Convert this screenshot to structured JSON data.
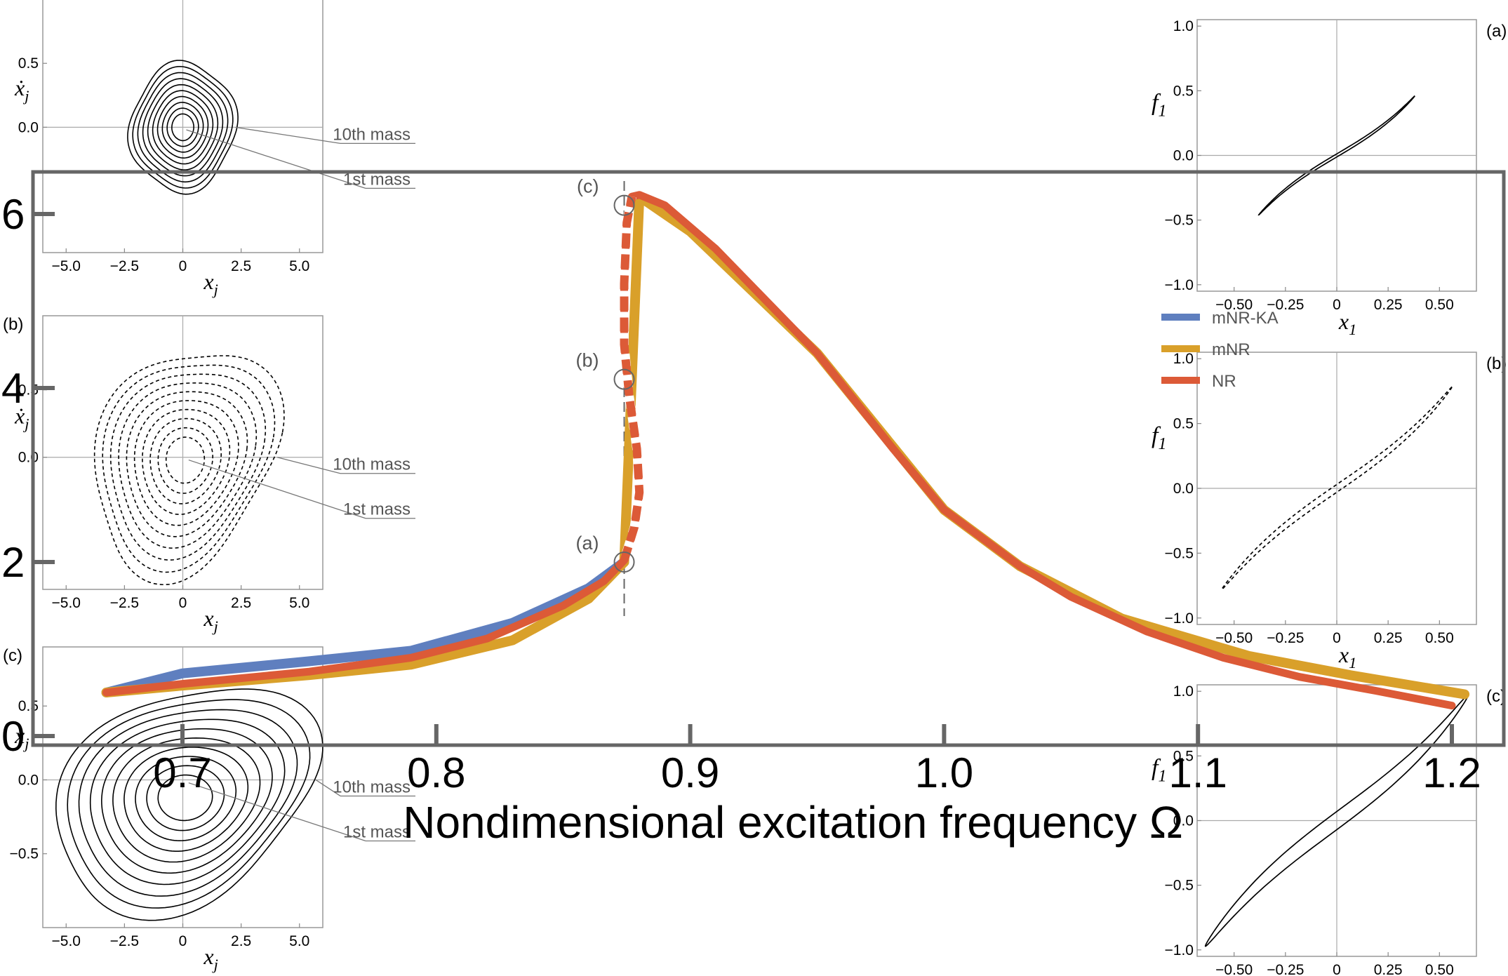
{
  "chart_data": [
    {
      "id": "main",
      "type": "line",
      "title": "",
      "xlabel": "Nondimensional excitation frequency Ω",
      "ylabel": "",
      "xlim": [
        0.66,
        1.22
      ],
      "ylim": [
        -0.15,
        6.45
      ],
      "xticks": [
        "0.7",
        "0.8",
        "0.9",
        "1.0",
        "1.1",
        "1.2"
      ],
      "yticks": [
        "0",
        "2",
        "4",
        "6"
      ],
      "grid": false,
      "legend_position": "right",
      "vline_x": 0.874,
      "series": [
        {
          "name": "mNR-KA",
          "color": "#5f7fbf",
          "x": [
            0.67,
            0.7,
            0.75,
            0.79,
            0.83,
            0.86,
            0.874
          ],
          "y": [
            0.5,
            0.72,
            0.86,
            0.98,
            1.3,
            1.7,
            2.0
          ]
        },
        {
          "name": "mNR",
          "color": "#d9a02a",
          "x": [
            0.67,
            0.7,
            0.75,
            0.79,
            0.83,
            0.86,
            0.874,
            0.88,
            0.9,
            0.95,
            1.0,
            1.03,
            1.07,
            1.12,
            1.16,
            1.205
          ],
          "y": [
            0.5,
            0.58,
            0.7,
            0.82,
            1.1,
            1.58,
            2.0,
            6.2,
            5.8,
            4.4,
            2.6,
            1.95,
            1.35,
            0.92,
            0.7,
            0.48
          ]
        },
        {
          "name": "NR",
          "color": "#dc5a37",
          "x": [
            0.67,
            0.7,
            0.75,
            0.79,
            0.82,
            0.85,
            0.866,
            0.874,
            0.878,
            0.88,
            0.879,
            0.876,
            0.874,
            0.874,
            0.875,
            0.877,
            0.88,
            0.89,
            0.91,
            0.95,
            0.98,
            1.0,
            1.03,
            1.05,
            1.08,
            1.11,
            1.14,
            1.17,
            1.2
          ],
          "y": [
            0.5,
            0.6,
            0.74,
            0.9,
            1.12,
            1.5,
            1.78,
            2.02,
            2.4,
            2.8,
            3.3,
            3.9,
            4.5,
            5.2,
            5.9,
            6.2,
            6.22,
            6.1,
            5.6,
            4.4,
            3.3,
            2.6,
            1.95,
            1.6,
            1.2,
            0.9,
            0.68,
            0.52,
            0.35
          ]
        }
      ],
      "annotations": [
        {
          "label": "(a)",
          "x": 0.874,
          "y": 2.0
        },
        {
          "label": "(b)",
          "x": 0.874,
          "y": 4.1
        },
        {
          "label": "(c)",
          "x": 0.874,
          "y": 6.1
        }
      ]
    },
    {
      "id": "inset-left-a",
      "type": "line",
      "xlabel": "x_j",
      "ylabel": "ẋ_j",
      "xlim": [
        -6,
        6
      ],
      "ylim": [
        -0.98,
        1.05
      ],
      "xticks": [
        "−5.0",
        "−2.5",
        "0",
        "2.5",
        "5.0"
      ],
      "yticks": [
        "0.0",
        "0.5"
      ],
      "curve_count": 10,
      "annotations": [
        "10th mass",
        "1st mass"
      ]
    },
    {
      "id": "inset-left-b",
      "type": "line",
      "xlabel": "x_j",
      "ylabel": "ẋ_j",
      "xlim": [
        -6,
        6
      ],
      "ylim": [
        -0.98,
        1.05
      ],
      "xticks": [
        "−5.0",
        "−2.5",
        "0",
        "2.5",
        "5.0"
      ],
      "yticks": [
        "0.0",
        "0.5"
      ],
      "curve_count": 10,
      "line_style": "dashed",
      "annotations": [
        "10th mass",
        "1st mass"
      ]
    },
    {
      "id": "inset-left-c",
      "type": "line",
      "xlabel": "x_j",
      "ylabel": "ẋ_j",
      "xlim": [
        -6,
        6
      ],
      "ylim": [
        -1.0,
        0.9
      ],
      "xticks": [
        "−5.0",
        "−2.5",
        "0",
        "2.5",
        "5.0"
      ],
      "yticks": [
        "−0.5",
        "0.0",
        "0.5"
      ],
      "curve_count": 10,
      "annotations": [
        "10th mass",
        "1st mass"
      ]
    },
    {
      "id": "inset-right-a",
      "type": "line",
      "xlabel": "x_1",
      "ylabel": "f_1",
      "xlim": [
        -0.68,
        0.68
      ],
      "ylim": [
        -1.05,
        1.05
      ],
      "xticks": [
        "−0.50",
        "−0.25",
        "0",
        "0.25",
        "0.50"
      ],
      "yticks": [
        "−1.0",
        "−0.5",
        "0.0",
        "0.5",
        "1.0"
      ],
      "loop_amplitude_x": 0.38,
      "loop_amplitude_f": 0.46
    },
    {
      "id": "inset-right-b",
      "type": "line",
      "xlabel": "x_1",
      "ylabel": "f_1",
      "xlim": [
        -0.68,
        0.68
      ],
      "ylim": [
        -1.05,
        1.05
      ],
      "xticks": [
        "−0.50",
        "−0.25",
        "0",
        "0.25",
        "0.50"
      ],
      "yticks": [
        "−1.0",
        "−0.5",
        "0.0",
        "0.5",
        "1.0"
      ],
      "loop_amplitude_x": 0.56,
      "loop_amplitude_f": 0.78,
      "line_style": "dashed"
    },
    {
      "id": "inset-right-c",
      "type": "line",
      "xlabel": "",
      "ylabel": "f_1",
      "xlim": [
        -0.68,
        0.68
      ],
      "ylim": [
        -1.05,
        1.05
      ],
      "xticks": [
        "−0.50",
        "−0.25",
        "0",
        "0.25",
        "0.50"
      ],
      "yticks": [
        "−1.0",
        "−0.5",
        "0.0",
        "0.5",
        "1.0"
      ],
      "loop_amplitude_x": 0.64,
      "loop_amplitude_f": 0.97
    }
  ],
  "panel_labels": {
    "a": "(a)",
    "b": "(b)",
    "c": "(c)"
  },
  "inset_text": {
    "mass10": "10th mass",
    "mass1": "1st mass",
    "xj": "x",
    "xj_sub": "j",
    "xdot": "ẋ",
    "xdot_sub": "j",
    "x1": "x",
    "x1_sub": "1",
    "f1": "f",
    "f1_sub": "1"
  },
  "colors": {
    "frame": "#666666",
    "axis_gray": "#888888"
  }
}
